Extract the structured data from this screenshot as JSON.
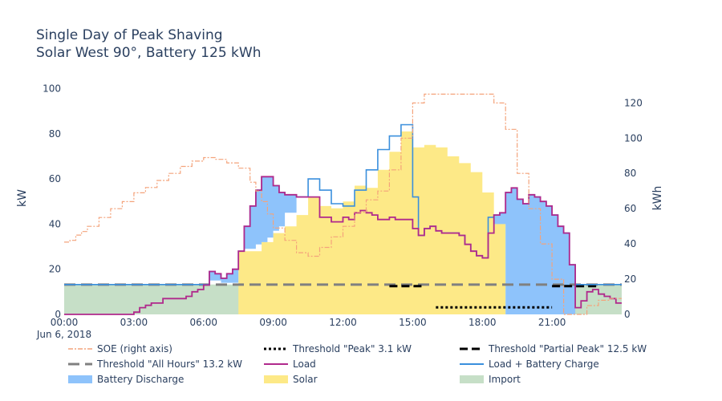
{
  "chart_data": {
    "type": "line",
    "title": "Single Day of Peak Shaving",
    "subtitle": "Solar West 90°, Battery 125 kWh",
    "ylabel": "kW",
    "y2label": "kWh",
    "date_label": "Jun 6, 2018",
    "x_ticks": [
      "00:00",
      "03:00",
      "06:00",
      "09:00",
      "12:00",
      "15:00",
      "18:00",
      "21:00"
    ],
    "y_ticks": [
      0,
      20,
      40,
      60,
      80,
      100
    ],
    "y2_ticks": [
      0,
      20,
      40,
      60,
      80,
      100,
      120
    ],
    "xlim": [
      0,
      24
    ],
    "ylim": [
      0,
      103
    ],
    "y2lim": [
      0,
      132
    ],
    "x_unit": "hours",
    "colors": {
      "soe": "#f4a37b",
      "load": "#b0298c",
      "load_charge": "#3a8fdd",
      "battery_discharge": "#8ec3fb",
      "solar": "#fde987",
      "import": "#c6dfc7",
      "threshold_all": "#808080",
      "threshold_peak": "#000000",
      "threshold_partial": "#000000"
    },
    "legend": [
      {
        "key": "soe",
        "label": "SOE (right axis)"
      },
      {
        "key": "threshold_peak",
        "label": "Threshold \"Peak\" 3.1 kW"
      },
      {
        "key": "threshold_partial",
        "label": "Threshold \"Partial Peak\" 12.5 kW"
      },
      {
        "key": "threshold_all",
        "label": "Threshold \"All Hours\" 13.2 kW"
      },
      {
        "key": "load",
        "label": "Load"
      },
      {
        "key": "load_charge",
        "label": "Load + Battery Charge"
      },
      {
        "key": "battery_discharge",
        "label": "Battery Discharge"
      },
      {
        "key": "solar",
        "label": "Solar"
      },
      {
        "key": "import",
        "label": "Import"
      }
    ],
    "series": {
      "load": [
        [
          0.0,
          0
        ],
        [
          2.0,
          0
        ],
        [
          3.0,
          1
        ],
        [
          3.25,
          3
        ],
        [
          3.5,
          4
        ],
        [
          3.75,
          5
        ],
        [
          4.0,
          5
        ],
        [
          4.25,
          7
        ],
        [
          5.0,
          7
        ],
        [
          5.25,
          8
        ],
        [
          5.5,
          10
        ],
        [
          5.75,
          11
        ],
        [
          6.0,
          13
        ],
        [
          6.25,
          19
        ],
        [
          6.5,
          18
        ],
        [
          6.75,
          16
        ],
        [
          7.0,
          18
        ],
        [
          7.25,
          20
        ],
        [
          7.5,
          28
        ],
        [
          7.75,
          39
        ],
        [
          8.0,
          48
        ],
        [
          8.25,
          55
        ],
        [
          8.5,
          61
        ],
        [
          8.75,
          61
        ],
        [
          9.0,
          57
        ],
        [
          9.25,
          54
        ],
        [
          9.5,
          53
        ],
        [
          10.0,
          52
        ],
        [
          11.0,
          43
        ],
        [
          11.5,
          41
        ],
        [
          11.75,
          41
        ],
        [
          12.0,
          43
        ],
        [
          12.25,
          42
        ],
        [
          12.5,
          45
        ],
        [
          12.75,
          46
        ],
        [
          13.0,
          45
        ],
        [
          13.25,
          44
        ],
        [
          13.5,
          42
        ],
        [
          13.75,
          42
        ],
        [
          14.0,
          43
        ],
        [
          14.25,
          42
        ],
        [
          14.75,
          42
        ],
        [
          15.0,
          38
        ],
        [
          15.25,
          35
        ],
        [
          15.5,
          38
        ],
        [
          15.75,
          39
        ],
        [
          16.0,
          37
        ],
        [
          16.25,
          36
        ],
        [
          16.75,
          36
        ],
        [
          17.0,
          35
        ],
        [
          17.25,
          31
        ],
        [
          17.5,
          28
        ],
        [
          17.75,
          26
        ],
        [
          18.0,
          25
        ],
        [
          18.25,
          36
        ],
        [
          18.5,
          44
        ],
        [
          18.75,
          45
        ],
        [
          19.0,
          54
        ],
        [
          19.25,
          56
        ],
        [
          19.5,
          51
        ],
        [
          19.75,
          49
        ],
        [
          20.0,
          53
        ],
        [
          20.25,
          52
        ],
        [
          20.5,
          50
        ],
        [
          20.75,
          48
        ],
        [
          21.0,
          44
        ],
        [
          21.25,
          39
        ],
        [
          21.5,
          36
        ],
        [
          21.75,
          22
        ],
        [
          22.0,
          3
        ],
        [
          22.25,
          6
        ],
        [
          22.5,
          10
        ],
        [
          22.75,
          11
        ],
        [
          23.0,
          9
        ],
        [
          23.25,
          8
        ],
        [
          23.5,
          7
        ],
        [
          23.75,
          5
        ],
        [
          24.0,
          5
        ]
      ],
      "load_plus_charge": [
        [
          0.0,
          13.2
        ],
        [
          6.0,
          13.2
        ],
        [
          6.25,
          19
        ],
        [
          6.5,
          18
        ],
        [
          6.75,
          16
        ],
        [
          7.0,
          18
        ],
        [
          7.25,
          20
        ],
        [
          7.5,
          28
        ],
        [
          7.75,
          39
        ],
        [
          8.0,
          48
        ],
        [
          8.25,
          55
        ],
        [
          8.5,
          61
        ],
        [
          8.75,
          61
        ],
        [
          9.0,
          57
        ],
        [
          9.25,
          54
        ],
        [
          9.5,
          53
        ],
        [
          10.0,
          52
        ],
        [
          10.5,
          60
        ],
        [
          11.0,
          55
        ],
        [
          11.5,
          49
        ],
        [
          12.0,
          48
        ],
        [
          12.5,
          55
        ],
        [
          13.0,
          64
        ],
        [
          13.5,
          73
        ],
        [
          13.75,
          73
        ],
        [
          14.0,
          79
        ],
        [
          14.25,
          79
        ],
        [
          14.5,
          84
        ],
        [
          14.75,
          84
        ],
        [
          15.0,
          52
        ],
        [
          15.25,
          35
        ],
        [
          15.5,
          38
        ],
        [
          15.75,
          39
        ],
        [
          16.0,
          37
        ],
        [
          16.25,
          36
        ],
        [
          16.75,
          36
        ],
        [
          17.0,
          35
        ],
        [
          17.25,
          31
        ],
        [
          17.5,
          28
        ],
        [
          17.75,
          26
        ],
        [
          18.0,
          25
        ],
        [
          18.25,
          43
        ],
        [
          18.5,
          44
        ],
        [
          18.75,
          45
        ],
        [
          19.0,
          54
        ],
        [
          19.25,
          56
        ],
        [
          19.5,
          51
        ],
        [
          19.75,
          49
        ],
        [
          20.0,
          53
        ],
        [
          20.25,
          52
        ],
        [
          20.5,
          50
        ],
        [
          20.75,
          48
        ],
        [
          21.0,
          44
        ],
        [
          21.25,
          39
        ],
        [
          21.5,
          36
        ],
        [
          21.75,
          22
        ],
        [
          22.0,
          13.2
        ],
        [
          24.0,
          13.2
        ]
      ],
      "solar": [
        [
          7.0,
          0
        ],
        [
          7.5,
          28
        ],
        [
          8.5,
          32
        ],
        [
          9.0,
          36
        ],
        [
          9.5,
          39
        ],
        [
          10.0,
          44
        ],
        [
          10.5,
          52
        ],
        [
          11.0,
          48
        ],
        [
          11.5,
          47
        ],
        [
          12.0,
          50
        ],
        [
          12.5,
          57
        ],
        [
          13.0,
          56
        ],
        [
          13.5,
          64
        ],
        [
          14.0,
          72
        ],
        [
          14.5,
          81
        ],
        [
          15.0,
          74
        ],
        [
          15.5,
          75
        ],
        [
          16.0,
          74
        ],
        [
          16.5,
          70
        ],
        [
          17.0,
          67
        ],
        [
          17.5,
          63
        ],
        [
          18.0,
          54
        ],
        [
          18.5,
          42
        ],
        [
          19.0,
          0
        ],
        [
          24.0,
          0
        ]
      ],
      "battery_discharge": [
        [
          6.0,
          0
        ],
        [
          6.25,
          4
        ],
        [
          6.5,
          3
        ],
        [
          6.75,
          2
        ],
        [
          7.0,
          4
        ],
        [
          7.25,
          6
        ],
        [
          7.5,
          0
        ],
        [
          7.75,
          10
        ],
        [
          8.0,
          19
        ],
        [
          8.25,
          24
        ],
        [
          8.5,
          29
        ],
        [
          8.75,
          27
        ],
        [
          9.0,
          20
        ],
        [
          9.25,
          15
        ],
        [
          9.5,
          8
        ],
        [
          10.0,
          0
        ],
        [
          18.0,
          0
        ],
        [
          18.5,
          4
        ],
        [
          18.75,
          5
        ],
        [
          19.0,
          54
        ],
        [
          19.25,
          56
        ],
        [
          19.5,
          51
        ],
        [
          19.75,
          49
        ],
        [
          20.0,
          53
        ],
        [
          20.25,
          52
        ],
        [
          20.5,
          50
        ],
        [
          20.75,
          48
        ],
        [
          21.0,
          44
        ],
        [
          21.25,
          39
        ],
        [
          21.5,
          36
        ],
        [
          21.75,
          22
        ],
        [
          22.0,
          0
        ],
        [
          24.0,
          0
        ]
      ],
      "import": [
        [
          0.0,
          13.2
        ],
        [
          15.0,
          13.2
        ],
        [
          15.25,
          0
        ],
        [
          21.5,
          0
        ],
        [
          21.75,
          13.2
        ],
        [
          24.0,
          13.2
        ]
      ],
      "soe_kwh": [
        [
          0.0,
          41
        ],
        [
          0.25,
          42
        ],
        [
          0.5,
          45
        ],
        [
          0.75,
          47
        ],
        [
          1.0,
          50
        ],
        [
          1.5,
          55
        ],
        [
          2.0,
          60
        ],
        [
          2.5,
          64
        ],
        [
          3.0,
          69
        ],
        [
          3.5,
          72
        ],
        [
          4.0,
          76
        ],
        [
          4.5,
          80
        ],
        [
          5.0,
          84
        ],
        [
          5.5,
          87
        ],
        [
          6.0,
          89
        ],
        [
          6.5,
          88
        ],
        [
          7.0,
          86
        ],
        [
          7.5,
          83
        ],
        [
          8.0,
          75
        ],
        [
          8.25,
          70
        ],
        [
          8.5,
          64
        ],
        [
          8.75,
          57
        ],
        [
          9.0,
          49
        ],
        [
          9.5,
          42
        ],
        [
          10.0,
          35
        ],
        [
          10.5,
          33
        ],
        [
          11.0,
          38
        ],
        [
          11.5,
          44
        ],
        [
          12.0,
          50
        ],
        [
          12.5,
          58
        ],
        [
          13.0,
          65
        ],
        [
          13.5,
          70
        ],
        [
          14.0,
          82
        ],
        [
          14.5,
          100
        ],
        [
          15.0,
          120
        ],
        [
          15.5,
          125
        ],
        [
          16.0,
          125
        ],
        [
          17.0,
          125
        ],
        [
          18.0,
          125
        ],
        [
          18.5,
          120
        ],
        [
          19.0,
          105
        ],
        [
          19.5,
          80
        ],
        [
          20.0,
          60
        ],
        [
          20.5,
          40
        ],
        [
          21.0,
          20
        ],
        [
          21.5,
          0
        ],
        [
          22.0,
          0
        ],
        [
          22.5,
          5
        ],
        [
          23.0,
          8
        ],
        [
          23.5,
          9
        ],
        [
          24.0,
          9
        ]
      ],
      "threshold_all_hours": 13.2,
      "threshold_partial_peak": {
        "value": 12.5,
        "segments": [
          [
            14.0,
            15.5
          ],
          [
            21.0,
            23.0
          ]
        ]
      },
      "threshold_peak": {
        "value": 3.1,
        "segments": [
          [
            16.0,
            21.0
          ]
        ]
      }
    }
  }
}
